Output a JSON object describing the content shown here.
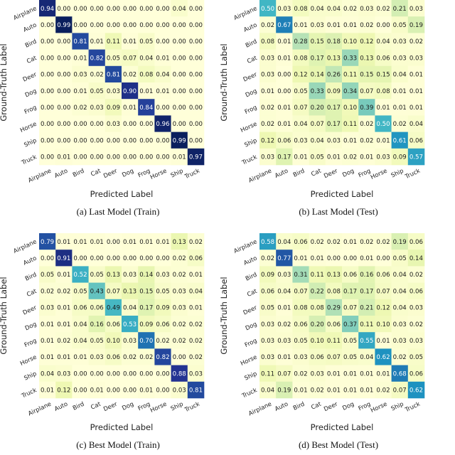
{
  "shared": {
    "labels": [
      "Airplane",
      "Auto",
      "Bird",
      "Cat",
      "Deer",
      "Dog",
      "Frog",
      "Horse",
      "Ship",
      "Truck"
    ],
    "xlabel": "Predicted Label",
    "ylabel": "Ground-Truth Label",
    "colormap": [
      "#ffffd9",
      "#edf8b1",
      "#c7e9b4",
      "#7fcdbb",
      "#41b6c4",
      "#1d91c0",
      "#225ea8",
      "#253494",
      "#081d58"
    ]
  },
  "chart_data": [
    {
      "type": "heatmap",
      "caption": "(a)  Last Model (Train)",
      "values": [
        [
          0.94,
          0.0,
          0.0,
          0.0,
          0.0,
          0.0,
          0.0,
          0.0,
          0.04,
          0.0
        ],
        [
          0.0,
          0.99,
          0.0,
          0.0,
          0.0,
          0.0,
          0.0,
          0.0,
          0.0,
          0.0
        ],
        [
          0.0,
          0.0,
          0.81,
          0.01,
          0.11,
          0.01,
          0.05,
          0.0,
          0.0,
          0.0
        ],
        [
          0.0,
          0.0,
          0.01,
          0.82,
          0.05,
          0.07,
          0.04,
          0.01,
          0.0,
          0.0
        ],
        [
          0.0,
          0.0,
          0.03,
          0.02,
          0.81,
          0.02,
          0.08,
          0.04,
          0.0,
          0.0
        ],
        [
          0.0,
          0.0,
          0.01,
          0.05,
          0.03,
          0.9,
          0.01,
          0.01,
          0.0,
          0.0
        ],
        [
          0.0,
          0.0,
          0.02,
          0.03,
          0.09,
          0.01,
          0.84,
          0.0,
          0.0,
          0.0
        ],
        [
          0.0,
          0.0,
          0.0,
          0.0,
          0.03,
          0.0,
          0.0,
          0.96,
          0.0,
          0.0
        ],
        [
          0.0,
          0.0,
          0.0,
          0.0,
          0.0,
          0.0,
          0.0,
          0.0,
          0.99,
          0.0
        ],
        [
          0.0,
          0.01,
          0.0,
          0.0,
          0.0,
          0.0,
          0.0,
          0.0,
          0.01,
          0.97
        ]
      ]
    },
    {
      "type": "heatmap",
      "caption": "(b)  Last Model (Test)",
      "values": [
        [
          0.5,
          0.03,
          0.08,
          0.04,
          0.04,
          0.02,
          0.03,
          0.02,
          0.21,
          0.03
        ],
        [
          0.02,
          0.67,
          0.01,
          0.03,
          0.01,
          0.01,
          0.02,
          0.0,
          0.05,
          0.19
        ],
        [
          0.08,
          0.01,
          0.28,
          0.15,
          0.18,
          0.1,
          0.12,
          0.04,
          0.03,
          0.02
        ],
        [
          0.03,
          0.01,
          0.08,
          0.17,
          0.13,
          0.33,
          0.13,
          0.06,
          0.03,
          0.03
        ],
        [
          0.03,
          0.0,
          0.12,
          0.14,
          0.26,
          0.11,
          0.15,
          0.15,
          0.04,
          0.01
        ],
        [
          0.01,
          0.0,
          0.05,
          0.33,
          0.09,
          0.34,
          0.07,
          0.08,
          0.01,
          0.01
        ],
        [
          0.02,
          0.01,
          0.07,
          0.2,
          0.17,
          0.1,
          0.39,
          0.01,
          0.01,
          0.01
        ],
        [
          0.02,
          0.01,
          0.04,
          0.07,
          0.17,
          0.11,
          0.02,
          0.5,
          0.02,
          0.04
        ],
        [
          0.12,
          0.06,
          0.03,
          0.04,
          0.03,
          0.01,
          0.02,
          0.01,
          0.61,
          0.06
        ],
        [
          0.03,
          0.17,
          0.01,
          0.05,
          0.01,
          0.02,
          0.01,
          0.03,
          0.09,
          0.57
        ]
      ]
    },
    {
      "type": "heatmap",
      "caption": "(c)  Best Model (Train)",
      "values": [
        [
          0.79,
          0.01,
          0.01,
          0.01,
          0.0,
          0.01,
          0.01,
          0.01,
          0.13,
          0.02
        ],
        [
          0.0,
          0.91,
          0.0,
          0.0,
          0.0,
          0.0,
          0.0,
          0.0,
          0.02,
          0.06
        ],
        [
          0.05,
          0.01,
          0.52,
          0.05,
          0.13,
          0.03,
          0.14,
          0.03,
          0.02,
          0.01
        ],
        [
          0.02,
          0.02,
          0.05,
          0.43,
          0.07,
          0.13,
          0.15,
          0.05,
          0.03,
          0.04
        ],
        [
          0.03,
          0.01,
          0.06,
          0.06,
          0.49,
          0.04,
          0.17,
          0.09,
          0.03,
          0.01
        ],
        [
          0.01,
          0.01,
          0.04,
          0.16,
          0.06,
          0.53,
          0.09,
          0.06,
          0.02,
          0.02
        ],
        [
          0.01,
          0.02,
          0.04,
          0.05,
          0.1,
          0.03,
          0.7,
          0.02,
          0.02,
          0.02
        ],
        [
          0.01,
          0.01,
          0.01,
          0.03,
          0.06,
          0.02,
          0.02,
          0.82,
          0.0,
          0.02
        ],
        [
          0.04,
          0.03,
          0.0,
          0.0,
          0.0,
          0.0,
          0.0,
          0.0,
          0.88,
          0.03
        ],
        [
          0.01,
          0.12,
          0.0,
          0.01,
          0.0,
          0.0,
          0.01,
          0.0,
          0.03,
          0.81
        ]
      ]
    },
    {
      "type": "heatmap",
      "caption": "(d)  Best Model (Test)",
      "values": [
        [
          0.58,
          0.04,
          0.06,
          0.02,
          0.02,
          0.01,
          0.02,
          0.02,
          0.19,
          0.06
        ],
        [
          0.02,
          0.77,
          0.01,
          0.01,
          0.0,
          0.0,
          0.01,
          0.0,
          0.05,
          0.14
        ],
        [
          0.09,
          0.03,
          0.31,
          0.11,
          0.13,
          0.06,
          0.16,
          0.06,
          0.04,
          0.02
        ],
        [
          0.06,
          0.04,
          0.07,
          0.22,
          0.08,
          0.17,
          0.17,
          0.07,
          0.04,
          0.06
        ],
        [
          0.05,
          0.01,
          0.08,
          0.08,
          0.29,
          0.07,
          0.21,
          0.12,
          0.04,
          0.03
        ],
        [
          0.03,
          0.02,
          0.06,
          0.2,
          0.06,
          0.37,
          0.11,
          0.1,
          0.03,
          0.02
        ],
        [
          0.03,
          0.03,
          0.05,
          0.1,
          0.11,
          0.05,
          0.55,
          0.01,
          0.03,
          0.03
        ],
        [
          0.03,
          0.01,
          0.03,
          0.06,
          0.07,
          0.05,
          0.04,
          0.62,
          0.02,
          0.05
        ],
        [
          0.11,
          0.07,
          0.02,
          0.03,
          0.01,
          0.01,
          0.01,
          0.01,
          0.68,
          0.06
        ],
        [
          0.04,
          0.19,
          0.01,
          0.02,
          0.01,
          0.01,
          0.01,
          0.02,
          0.07,
          0.62
        ]
      ]
    }
  ]
}
